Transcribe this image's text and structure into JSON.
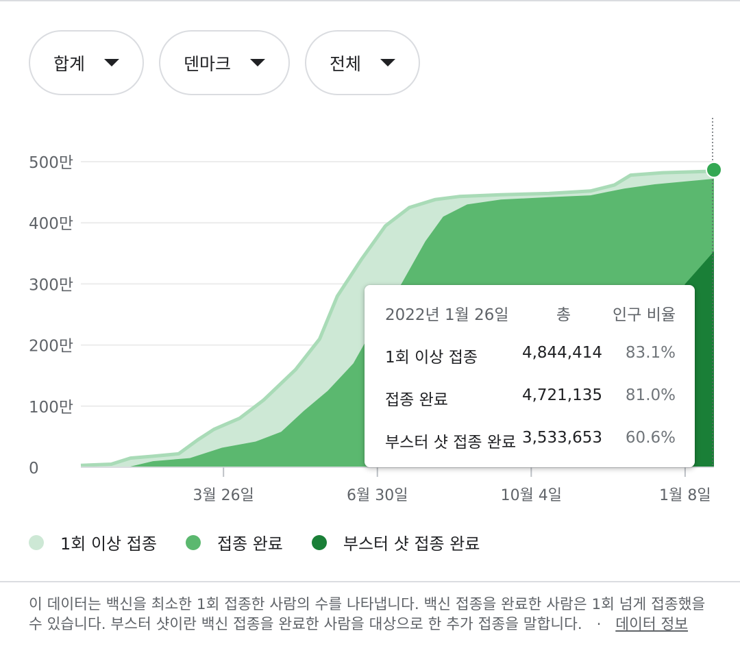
{
  "filters": {
    "metric": "합계",
    "region": "덴마크",
    "population": "전체"
  },
  "tooltip": {
    "date": "2022년 1월 26일",
    "col_total": "총",
    "col_ratio": "인구 비율",
    "rows": [
      {
        "label": "1회 이상 접종",
        "total": "4,844,414",
        "ratio": "83.1%"
      },
      {
        "label": "접종 완료",
        "total": "4,721,135",
        "ratio": "81.0%"
      },
      {
        "label": "부스터 샷 접종 완료",
        "total": "3,533,653",
        "ratio": "60.6%"
      }
    ]
  },
  "legend": [
    {
      "label": "1회 이상 접종",
      "color": "#cde8d5"
    },
    {
      "label": "접종 완료",
      "color": "#5bb86f"
    },
    {
      "label": "부스터 샷 접종 완료",
      "color": "#1a7f37"
    }
  ],
  "footnote": {
    "text": "이 데이터는 백신을 최소한 1회 접종한 사람의 수를 나타냅니다. 백신 접종을 완료한 사람은 1회 넘게 접종했을 수 있습니다. 부스터 샷이란 백신 접종을 완료한 사람을 대상으로 한 추가 접종을 말합니다.",
    "separator": "·",
    "link": "데이터 정보"
  },
  "chart_data": {
    "type": "area",
    "x_domain": [
      "2020-12-27",
      "2022-01-26"
    ],
    "ylim": [
      0,
      5000000
    ],
    "y_ticks": [
      {
        "value": 0,
        "label": "0"
      },
      {
        "value": 1000000,
        "label": "100만"
      },
      {
        "value": 2000000,
        "label": "200만"
      },
      {
        "value": 3000000,
        "label": "300만"
      },
      {
        "value": 4000000,
        "label": "400만"
      },
      {
        "value": 5000000,
        "label": "500만"
      }
    ],
    "x_ticks": [
      {
        "date": "2021-03-26",
        "label": "3월 26일"
      },
      {
        "date": "2021-06-30",
        "label": "6월 30일"
      },
      {
        "date": "2021-10-04",
        "label": "10월 4일"
      },
      {
        "date": "2022-01-08",
        "label": "1월 8일"
      }
    ],
    "hover_date": "2022-01-26",
    "series": [
      {
        "name": "1회 이상 접종",
        "fill": "#cde8d5",
        "stroke": "#a9dbb7",
        "points": [
          [
            "2020-12-27",
            30000
          ],
          [
            "2021-01-15",
            50000
          ],
          [
            "2021-01-27",
            150000
          ],
          [
            "2021-02-10",
            180000
          ],
          [
            "2021-02-26",
            220000
          ],
          [
            "2021-03-10",
            450000
          ],
          [
            "2021-03-20",
            620000
          ],
          [
            "2021-04-05",
            800000
          ],
          [
            "2021-04-20",
            1100000
          ],
          [
            "2021-05-10",
            1600000
          ],
          [
            "2021-05-25",
            2100000
          ],
          [
            "2021-06-05",
            2800000
          ],
          [
            "2021-06-20",
            3400000
          ],
          [
            "2021-07-05",
            3950000
          ],
          [
            "2021-07-20",
            4250000
          ],
          [
            "2021-08-05",
            4380000
          ],
          [
            "2021-08-20",
            4430000
          ],
          [
            "2021-09-15",
            4460000
          ],
          [
            "2021-10-15",
            4480000
          ],
          [
            "2021-11-10",
            4520000
          ],
          [
            "2021-11-25",
            4620000
          ],
          [
            "2021-12-05",
            4780000
          ],
          [
            "2021-12-25",
            4820000
          ],
          [
            "2022-01-26",
            4844414
          ]
        ]
      },
      {
        "name": "접종 완료",
        "fill": "#5bb86f",
        "points": [
          [
            "2020-12-27",
            0
          ],
          [
            "2021-01-25",
            0
          ],
          [
            "2021-02-10",
            100000
          ],
          [
            "2021-03-05",
            150000
          ],
          [
            "2021-03-25",
            320000
          ],
          [
            "2021-04-15",
            420000
          ],
          [
            "2021-05-01",
            580000
          ],
          [
            "2021-05-15",
            920000
          ],
          [
            "2021-05-30",
            1250000
          ],
          [
            "2021-06-15",
            1700000
          ],
          [
            "2021-06-30",
            2400000
          ],
          [
            "2021-07-15",
            3000000
          ],
          [
            "2021-07-30",
            3700000
          ],
          [
            "2021-08-10",
            4100000
          ],
          [
            "2021-08-25",
            4300000
          ],
          [
            "2021-09-15",
            4380000
          ],
          [
            "2021-10-15",
            4420000
          ],
          [
            "2021-11-10",
            4450000
          ],
          [
            "2021-12-01",
            4560000
          ],
          [
            "2021-12-20",
            4630000
          ],
          [
            "2022-01-26",
            4721135
          ]
        ]
      },
      {
        "name": "부스터 샷 접종 완료",
        "fill": "#1a7f37",
        "points": [
          [
            "2020-12-27",
            0
          ],
          [
            "2021-11-10",
            0
          ],
          [
            "2021-11-25",
            150000
          ],
          [
            "2021-12-10",
            800000
          ],
          [
            "2021-12-25",
            2200000
          ],
          [
            "2022-01-08",
            3000000
          ],
          [
            "2022-01-26",
            3533653
          ]
        ]
      }
    ]
  }
}
